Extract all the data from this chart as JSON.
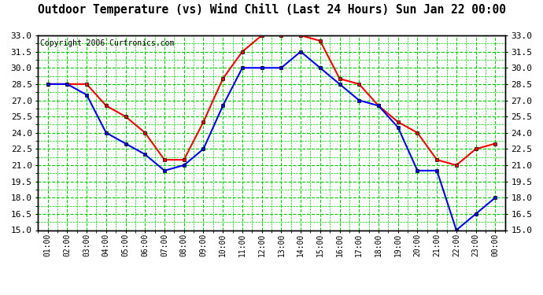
{
  "title": "Outdoor Temperature (vs) Wind Chill (Last 24 Hours) Sun Jan 22 00:00",
  "copyright": "Copyright 2006 Curtronics.com",
  "x_labels": [
    "01:00",
    "02:00",
    "03:00",
    "04:00",
    "05:00",
    "06:00",
    "07:00",
    "08:00",
    "09:00",
    "10:00",
    "11:00",
    "12:00",
    "13:00",
    "14:00",
    "15:00",
    "16:00",
    "17:00",
    "18:00",
    "19:00",
    "20:00",
    "21:00",
    "22:00",
    "23:00",
    "00:00"
  ],
  "y_ticks": [
    15.0,
    16.5,
    18.0,
    19.5,
    21.0,
    22.5,
    24.0,
    25.5,
    27.0,
    28.5,
    30.0,
    31.5,
    33.0
  ],
  "y_min": 15.0,
  "y_max": 33.0,
  "temp_color": "#ff0000",
  "windchill_color": "#0000ff",
  "grid_color": "#00cc00",
  "bg_color": "#ffffff",
  "plot_bg_color": "#ffffff",
  "temp_data": [
    28.5,
    28.5,
    28.5,
    26.5,
    25.5,
    24.0,
    21.5,
    21.5,
    25.0,
    29.0,
    31.5,
    33.0,
    33.0,
    33.0,
    32.5,
    29.0,
    28.5,
    26.5,
    25.0,
    24.0,
    21.5,
    21.0,
    22.5,
    23.0
  ],
  "windchill_data": [
    28.5,
    28.5,
    27.5,
    24.0,
    23.0,
    22.0,
    20.5,
    21.0,
    22.5,
    26.5,
    30.0,
    30.0,
    30.0,
    31.5,
    30.0,
    28.5,
    27.0,
    26.5,
    24.5,
    20.5,
    20.5,
    15.0,
    16.5,
    18.0
  ]
}
